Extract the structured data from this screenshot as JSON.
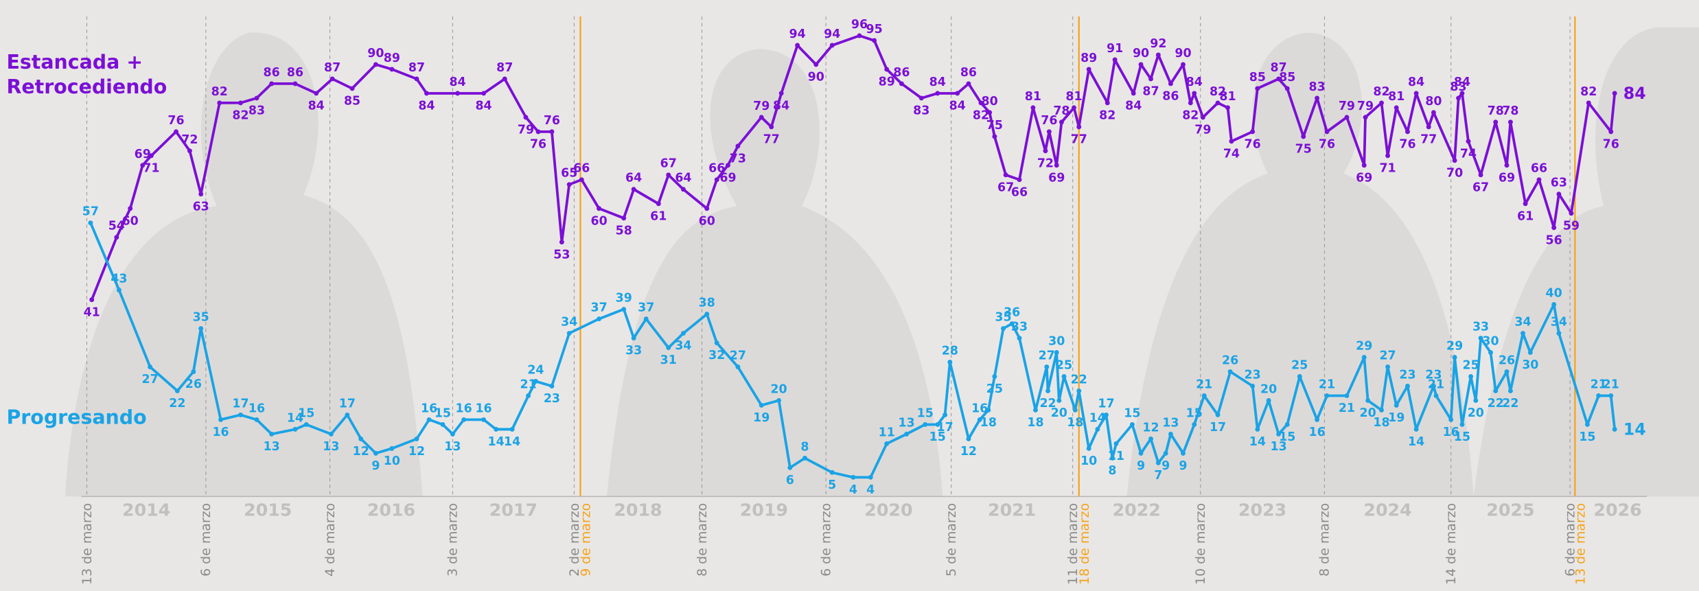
{
  "chart_data": {
    "type": "line",
    "xlim": [
      2013.5,
      2027.2
    ],
    "ylim": [
      0,
      100
    ],
    "series": [
      {
        "name": "Estancada + Retrocediendo",
        "color": "#7b0fd6",
        "x": [
          2014.24,
          2014.44,
          2014.55,
          2014.65,
          2014.72,
          2014.92,
          2015.03,
          2015.12,
          2015.27,
          2015.44,
          2015.57,
          2015.69,
          2015.88,
          2016.05,
          2016.18,
          2016.34,
          2016.53,
          2016.66,
          2016.86,
          2016.94,
          2017.19,
          2017.4,
          2017.57,
          2017.74,
          2017.84,
          2017.95,
          2018.03,
          2018.09,
          2018.19,
          2018.33,
          2018.53,
          2018.61,
          2018.81,
          2018.89,
          2019.01,
          2019.2,
          2019.28,
          2019.37,
          2019.45,
          2019.64,
          2019.72,
          2019.8,
          2019.93,
          2020.08,
          2020.21,
          2020.43,
          2020.55,
          2020.65,
          2020.77,
          2020.93,
          2021.06,
          2021.22,
          2021.31,
          2021.41,
          2021.48,
          2021.52,
          2021.61,
          2021.72,
          2021.83,
          2021.93,
          2021.96,
          2022.02,
          2022.06,
          2022.16,
          2022.2,
          2022.28,
          2022.43,
          2022.49,
          2022.64,
          2022.7,
          2022.78,
          2022.84,
          2022.94,
          2023.04,
          2023.1,
          2023.13,
          2023.2,
          2023.32,
          2023.4,
          2023.43,
          2023.6,
          2023.64,
          2023.81,
          2023.88,
          2024.01,
          2024.12,
          2024.2,
          2024.36,
          2024.5,
          2024.51,
          2024.64,
          2024.69,
          2024.76,
          2024.85,
          2024.92,
          2025.02,
          2025.06,
          2025.23,
          2025.26,
          2025.29,
          2025.34,
          2025.44,
          2025.56,
          2025.65,
          2025.68,
          2025.8,
          2025.91,
          2026.03,
          2026.07,
          2026.17,
          2026.31,
          2026.49,
          2026.52
        ],
        "values": [
          41,
          54,
          60,
          69,
          71,
          76,
          72,
          63,
          82,
          82,
          83,
          86,
          86,
          84,
          87,
          85,
          90,
          89,
          87,
          84,
          84,
          84,
          87,
          79,
          76,
          76,
          53,
          65,
          66,
          60,
          58,
          64,
          61,
          67,
          64,
          60,
          66,
          69,
          73,
          79,
          77,
          84,
          94,
          90,
          94,
          96,
          95,
          89,
          86,
          83,
          84,
          84,
          86,
          82,
          80,
          75,
          67,
          66,
          81,
          72,
          76,
          69,
          78,
          81,
          77,
          89,
          82,
          91,
          84,
          90,
          87,
          92,
          86,
          90,
          82,
          84,
          79,
          82,
          81,
          74,
          76,
          85,
          87,
          85,
          75,
          83,
          76,
          79,
          69,
          79,
          82,
          71,
          81,
          76,
          84,
          77,
          80,
          70,
          83,
          84,
          74,
          67,
          78,
          69,
          78,
          61,
          66,
          56,
          63,
          59,
          82,
          76,
          84
        ]
      },
      {
        "name": "Progresando",
        "color": "#1aa3e6",
        "x": [
          2014.23,
          2014.46,
          2014.71,
          2014.93,
          2015.06,
          2015.12,
          2015.28,
          2015.44,
          2015.57,
          2015.69,
          2015.88,
          2015.97,
          2016.17,
          2016.3,
          2016.41,
          2016.53,
          2016.66,
          2016.86,
          2016.96,
          2017.07,
          2017.15,
          2017.24,
          2017.4,
          2017.5,
          2017.63,
          2017.76,
          2017.82,
          2017.95,
          2018.09,
          2018.33,
          2018.53,
          2018.61,
          2018.71,
          2018.89,
          2019.01,
          2019.2,
          2019.28,
          2019.45,
          2019.64,
          2019.78,
          2019.87,
          2019.99,
          2020.21,
          2020.38,
          2020.52,
          2020.65,
          2020.81,
          2020.96,
          2021.06,
          2021.12,
          2021.16,
          2021.31,
          2021.4,
          2021.47,
          2021.52,
          2021.59,
          2021.66,
          2021.72,
          2021.85,
          2021.94,
          2021.95,
          2022.02,
          2022.04,
          2022.08,
          2022.17,
          2022.2,
          2022.28,
          2022.35,
          2022.42,
          2022.47,
          2022.5,
          2022.63,
          2022.7,
          2022.78,
          2022.84,
          2022.9,
          2022.94,
          2023.04,
          2023.13,
          2023.21,
          2023.32,
          2023.42,
          2023.6,
          2023.64,
          2023.73,
          2023.81,
          2023.88,
          2023.98,
          2024.12,
          2024.2,
          2024.36,
          2024.5,
          2024.53,
          2024.64,
          2024.69,
          2024.76,
          2024.85,
          2024.92,
          2025.06,
          2025.08,
          2025.2,
          2025.23,
          2025.29,
          2025.36,
          2025.4,
          2025.44,
          2025.52,
          2025.56,
          2025.65,
          2025.68,
          2025.78,
          2025.84,
          2026.03,
          2026.07,
          2026.3,
          2026.39,
          2026.49,
          2026.52
        ],
        "values": [
          57,
          43,
          27,
          22,
          26,
          35,
          16,
          17,
          16,
          13,
          14,
          15,
          13,
          17,
          12,
          9,
          10,
          12,
          16,
          15,
          13,
          16,
          16,
          14,
          14,
          21,
          24,
          23,
          34,
          37,
          39,
          33,
          37,
          31,
          34,
          38,
          32,
          27,
          19,
          20,
          6,
          8,
          5,
          4,
          4,
          11,
          13,
          15,
          15,
          17,
          28,
          12,
          16,
          18,
          25,
          35,
          36,
          33,
          18,
          27,
          22,
          30,
          20,
          25,
          18,
          22,
          10,
          14,
          17,
          8,
          11,
          15,
          9,
          12,
          7,
          9,
          13,
          9,
          15,
          21,
          17,
          26,
          23,
          14,
          20,
          13,
          15,
          25,
          16,
          21,
          21,
          29,
          20,
          18,
          27,
          19,
          23,
          14,
          23,
          21,
          16,
          29,
          15,
          25,
          20,
          33,
          30,
          22,
          26,
          22,
          34,
          30,
          40,
          34,
          15,
          21,
          21,
          14
        ]
      }
    ],
    "markers": [
      {
        "label": "13 de marzo",
        "x": 2014.2,
        "color": "#9a9a9a",
        "dashed": true
      },
      {
        "label": "6 de marzo",
        "x": 2015.16,
        "color": "#9a9a9a",
        "dashed": true
      },
      {
        "label": "4 de marzo",
        "x": 2016.16,
        "color": "#9a9a9a",
        "dashed": true
      },
      {
        "label": "3 de marzo",
        "x": 2017.15,
        "color": "#9a9a9a",
        "dashed": true
      },
      {
        "label": "2 de marzo",
        "x": 2018.13,
        "color": "#9a9a9a",
        "dashed": true
      },
      {
        "label": "9 de marzo",
        "x": 2018.18,
        "color": "#f5a31a",
        "dashed": false
      },
      {
        "label": "8 de marzo",
        "x": 2019.16,
        "color": "#9a9a9a",
        "dashed": true
      },
      {
        "label": "6 de marzo",
        "x": 2020.16,
        "color": "#9a9a9a",
        "dashed": true
      },
      {
        "label": "5 de marzo",
        "x": 2021.17,
        "color": "#9a9a9a",
        "dashed": true
      },
      {
        "label": "11 de marzo",
        "x": 2022.15,
        "color": "#9a9a9a",
        "dashed": true
      },
      {
        "label": "18 de marzo",
        "x": 2022.2,
        "color": "#f5a31a",
        "dashed": false
      },
      {
        "label": "10 de marzo",
        "x": 2023.18,
        "color": "#9a9a9a",
        "dashed": true
      },
      {
        "label": "8 de marzo",
        "x": 2024.18,
        "color": "#9a9a9a",
        "dashed": true
      },
      {
        "label": "14 de marzo",
        "x": 2025.2,
        "color": "#9a9a9a",
        "dashed": true
      },
      {
        "label": "6 de marzo",
        "x": 2026.16,
        "color": "#9a9a9a",
        "dashed": true
      },
      {
        "label": "13 de marzo",
        "x": 2026.2,
        "color": "#f5a31a",
        "dashed": false
      }
    ],
    "year_labels": [
      "2014",
      "2015",
      "2016",
      "2017",
      "2018",
      "2019",
      "2020",
      "2021",
      "2022",
      "2023",
      "2024",
      "2025",
      "2026"
    ]
  }
}
